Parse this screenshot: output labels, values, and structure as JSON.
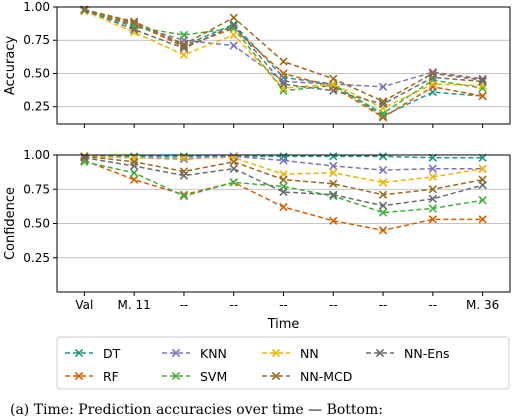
{
  "chart_data": [
    {
      "type": "line",
      "ylabel": "Accuracy",
      "xlabel": "",
      "ylim": [
        0.12,
        1.0
      ],
      "yticks": [
        0.25,
        0.5,
        0.75,
        1.0
      ],
      "ytick_labels": [
        "0.25",
        "0.50",
        "0.75",
        "1.00"
      ],
      "grid": "y",
      "categories": [
        "Val",
        "M. 11",
        "--",
        "--",
        "--",
        "--",
        "--",
        "--",
        "M. 36"
      ],
      "x": [
        0,
        1,
        2,
        3,
        4,
        5,
        6,
        7,
        8
      ],
      "series": [
        {
          "name": "DT",
          "color": "#1a9a86",
          "values": [
            0.97,
            0.87,
            0.71,
            0.87,
            0.47,
            0.42,
            0.18,
            0.36,
            0.33
          ]
        },
        {
          "name": "RF",
          "color": "#d55e00",
          "values": [
            0.97,
            0.88,
            0.7,
            0.84,
            0.5,
            0.4,
            0.17,
            0.4,
            0.33
          ]
        },
        {
          "name": "KNN",
          "color": "#7e72b8",
          "values": [
            0.97,
            0.86,
            0.75,
            0.71,
            0.44,
            0.42,
            0.4,
            0.51,
            0.46
          ]
        },
        {
          "name": "SVM",
          "color": "#3fae3f",
          "values": [
            0.98,
            0.85,
            0.79,
            0.84,
            0.37,
            0.41,
            0.2,
            0.45,
            0.39
          ]
        },
        {
          "name": "NN",
          "color": "#f0b400",
          "values": [
            0.97,
            0.81,
            0.64,
            0.79,
            0.39,
            0.42,
            0.24,
            0.42,
            0.41
          ]
        },
        {
          "name": "NN-MCD",
          "color": "#9b6a1f",
          "values": [
            0.98,
            0.89,
            0.72,
            0.92,
            0.59,
            0.46,
            0.29,
            0.5,
            0.45
          ]
        },
        {
          "name": "NN-Ens",
          "color": "#6b6b6b",
          "values": [
            0.98,
            0.83,
            0.69,
            0.86,
            0.42,
            0.37,
            0.27,
            0.47,
            0.44
          ]
        }
      ]
    },
    {
      "type": "line",
      "ylabel": "Confidence",
      "xlabel": "Time",
      "ylim": [
        0.0,
        1.0
      ],
      "yticks": [
        0.25,
        0.5,
        0.75,
        1.0
      ],
      "ytick_labels": [
        "0.25",
        "0.50",
        "0.75",
        "1.00"
      ],
      "grid": "y",
      "categories": [
        "Val",
        "M. 11",
        "--",
        "--",
        "--",
        "--",
        "--",
        "--",
        "M. 36"
      ],
      "x": [
        0,
        1,
        2,
        3,
        4,
        5,
        6,
        7,
        8
      ],
      "series": [
        {
          "name": "DT",
          "color": "#1a9a86",
          "values": [
            0.99,
            0.99,
            0.99,
            0.99,
            0.99,
            0.99,
            0.99,
            0.98,
            0.98
          ]
        },
        {
          "name": "RF",
          "color": "#d55e00",
          "values": [
            0.96,
            0.82,
            0.71,
            0.8,
            0.62,
            0.52,
            0.45,
            0.53,
            0.53
          ]
        },
        {
          "name": "KNN",
          "color": "#7e72b8",
          "values": [
            0.99,
            0.98,
            0.97,
            0.99,
            0.96,
            0.92,
            0.89,
            0.9,
            0.9
          ]
        },
        {
          "name": "SVM",
          "color": "#3fae3f",
          "values": [
            0.95,
            0.87,
            0.7,
            0.8,
            0.77,
            0.7,
            0.58,
            0.61,
            0.67
          ]
        },
        {
          "name": "NN",
          "color": "#f0b400",
          "values": [
            0.99,
            0.98,
            0.98,
            0.98,
            0.86,
            0.87,
            0.8,
            0.84,
            0.9
          ]
        },
        {
          "name": "NN-MCD",
          "color": "#9b6a1f",
          "values": [
            0.99,
            0.95,
            0.88,
            0.95,
            0.82,
            0.79,
            0.71,
            0.75,
            0.82
          ]
        },
        {
          "name": "NN-Ens",
          "color": "#6b6b6b",
          "values": [
            0.98,
            0.92,
            0.85,
            0.9,
            0.73,
            0.71,
            0.63,
            0.68,
            0.78
          ]
        }
      ]
    }
  ],
  "legend": {
    "placement": "below",
    "columns": [
      [
        "DT",
        "RF"
      ],
      [
        "KNN",
        "SVM"
      ],
      [
        "NN",
        "NN-MCD"
      ],
      [
        "NN-Ens"
      ]
    ]
  },
  "caption": "(a) Time: Prediction accuracies over time — Bottom:"
}
